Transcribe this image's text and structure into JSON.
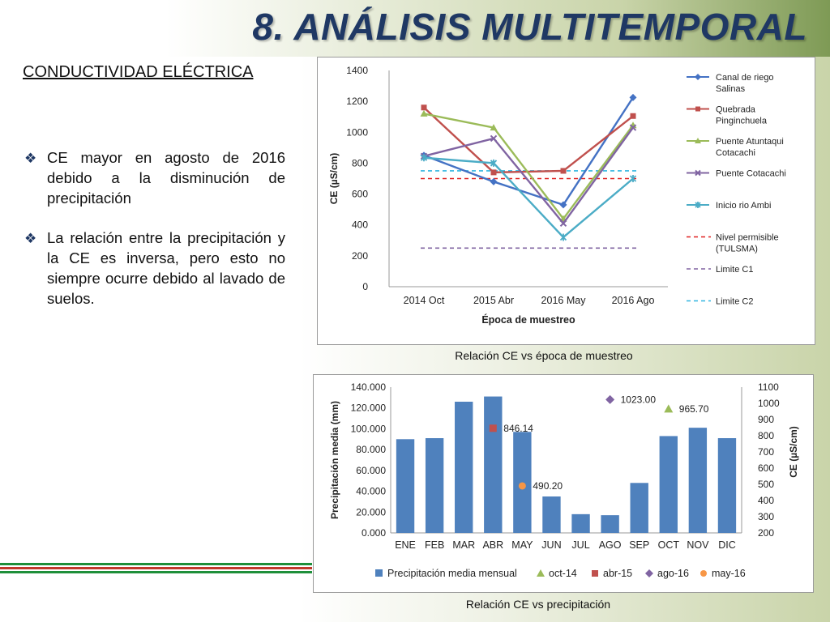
{
  "slide": {
    "title": "8. ANÁLISIS MULTITEMPORAL",
    "subtitle": "CONDUCTIVIDAD ELÉCTRICA",
    "bullets": [
      "CE mayor en agosto de 2016 debido a la disminución de precipitación",
      "La relación entre la precipitación y la CE es inversa, pero esto no siempre ocurre debido al lavado de suelos."
    ],
    "caption_line_chart": "Relación CE vs época de muestreo",
    "caption_combo_chart": "Relación CE vs precipitación",
    "stripe_colors": [
      "#1e8f3a",
      "#c0392b",
      "#1e8f3a"
    ]
  },
  "chart_data": [
    {
      "type": "line",
      "title": "",
      "xlabel": "Época de muestreo",
      "ylabel": "CE (µS/cm)",
      "categories": [
        "2014 Oct",
        "2015 Abr",
        "2016 May",
        "2016 Ago"
      ],
      "ylim": [
        0,
        1400
      ],
      "yticks": [
        0,
        200,
        400,
        600,
        800,
        1000,
        1200,
        1400
      ],
      "grid": false,
      "legend_position": "right",
      "series": [
        {
          "name": "Canal de riego Salinas",
          "values": [
            850,
            680,
            530,
            1225
          ],
          "color": "#4472c4",
          "marker": "diamond"
        },
        {
          "name": "Quebrada Pinginchuela",
          "values": [
            1160,
            740,
            750,
            1105
          ],
          "color": "#c0504d",
          "marker": "square"
        },
        {
          "name": "Puente Atuntaqui Cotacachi",
          "values": [
            1120,
            1030,
            440,
            1045
          ],
          "color": "#9bbb59",
          "marker": "triangle"
        },
        {
          "name": "Puente Cotacachi",
          "values": [
            845,
            960,
            410,
            1030
          ],
          "color": "#8064a2",
          "marker": "x"
        },
        {
          "name": "Inicio rio Ambi",
          "values": [
            835,
            800,
            320,
            700
          ],
          "color": "#4bacc6",
          "marker": "star"
        }
      ],
      "reference_lines": [
        {
          "name": "Nivel permisible (TULSMA)",
          "value": 700,
          "color": "#e02020",
          "dash": "dashed"
        },
        {
          "name": "Limite C1",
          "value": 250,
          "color": "#8064a2",
          "dash": "dashed"
        },
        {
          "name": "Limite C2",
          "value": 750,
          "color": "#31b5e0",
          "dash": "dashed"
        }
      ]
    },
    {
      "type": "bar",
      "title": "",
      "xlabel": "",
      "ylabel": "Precipitación media (mm)",
      "y2label": "CE (µS/cm)",
      "categories": [
        "ENE",
        "FEB",
        "MAR",
        "ABR",
        "MAY",
        "JUN",
        "JUL",
        "AGO",
        "SEP",
        "OCT",
        "NOV",
        "DIC"
      ],
      "ylim": [
        0,
        140
      ],
      "yticks": [
        "0.000",
        "20.000",
        "40.000",
        "60.000",
        "80.000",
        "100.000",
        "120.000",
        "140.000"
      ],
      "y2lim": [
        200,
        1100
      ],
      "y2ticks": [
        200,
        300,
        400,
        500,
        600,
        700,
        800,
        900,
        1000,
        1100
      ],
      "grid": false,
      "legend_position": "bottom",
      "bar_series": {
        "name": "Precipitación media mensual",
        "color": "#4f81bd",
        "values": [
          90,
          91,
          126,
          131,
          97,
          35,
          18,
          17,
          48,
          93,
          101,
          91
        ]
      },
      "point_series": [
        {
          "name": "oct-14",
          "category": "OCT",
          "value": 965.7,
          "label": "965.70",
          "color": "#9bbb59",
          "marker": "triangle"
        },
        {
          "name": "abr-15",
          "category": "ABR",
          "value": 846.14,
          "label": "846.14",
          "color": "#c0504d",
          "marker": "square"
        },
        {
          "name": "ago-16",
          "category": "AGO",
          "value": 1023.0,
          "label": "1023.00",
          "color": "#8064a2",
          "marker": "diamond"
        },
        {
          "name": "may-16",
          "category": "MAY",
          "value": 490.2,
          "label": "490.20",
          "color": "#f79646",
          "marker": "circle"
        }
      ]
    }
  ]
}
